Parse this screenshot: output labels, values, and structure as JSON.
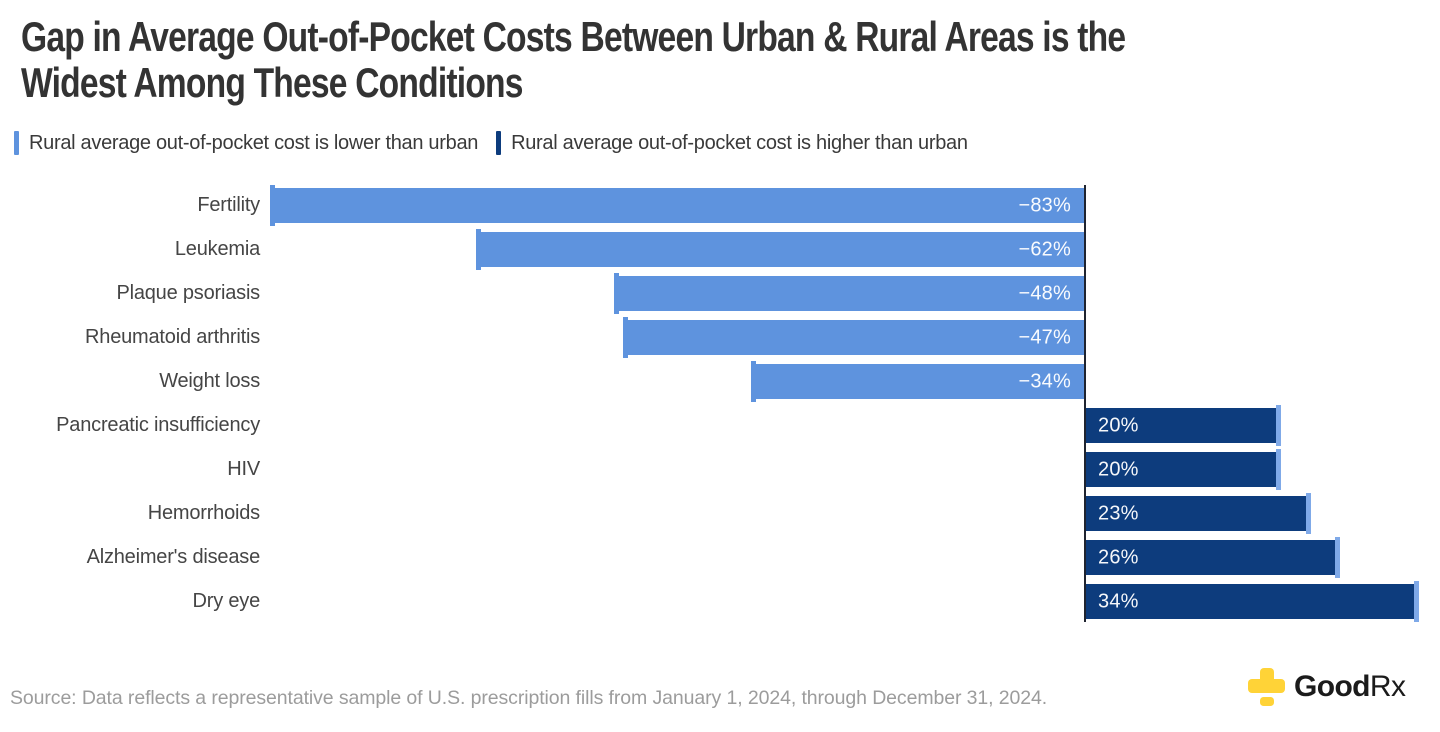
{
  "page": {
    "title_line1": "Gap in Average Out-of-Pocket Costs Between Urban & Rural Areas is the",
    "title_line2": "Widest Among These Conditions"
  },
  "legend": {
    "items": [
      {
        "label": "Rural average out-of-pocket cost is lower than urban",
        "color": "#5E93DE"
      },
      {
        "label": "Rural average out-of-pocket cost is higher than urban",
        "color": "#0D3C7D"
      }
    ]
  },
  "chart_data": {
    "type": "bar",
    "orientation": "horizontal",
    "diverging": true,
    "title": "Gap in Average Out-of-Pocket Costs Between Urban & Rural Areas is the Widest Among These Conditions",
    "categories": [
      "Fertility",
      "Leukemia",
      "Plaque psoriasis",
      "Rheumatoid arthritis",
      "Weight loss",
      "Pancreatic insufficiency",
      "HIV",
      "Hemorrhoids",
      "Alzheimer's disease",
      "Dry eye"
    ],
    "values": [
      -83,
      -62,
      -48,
      -47,
      -34,
      20,
      20,
      23,
      26,
      34
    ],
    "value_labels": [
      "−83%",
      "−62%",
      "−48%",
      "−47%",
      "−34%",
      "20%",
      "20%",
      "23%",
      "26%",
      "34%"
    ],
    "unit": "percent",
    "xlim": [
      -83,
      34
    ],
    "gridlines": false,
    "axis_tick_labels_shown": false,
    "value_label_position": "inside bar, adjacent to zero axis",
    "legend_entries": [
      "Rural average out-of-pocket cost is lower than urban",
      "Rural average out-of-pocket cost is higher than urban"
    ],
    "legend_position": "top-left, above plot",
    "colors": {
      "negative_bar": "#5E93DE",
      "positive_bar": "#0D3C7D",
      "end_cap": "#7FA9E8",
      "axis_line": "#1F2430",
      "value_text": "#FFFFFF"
    }
  },
  "footer": {
    "source": "Source: Data reflects a representative sample of U.S. prescription fills from January 1, 2024, through December 31, 2024.",
    "logo": {
      "brand_bold": "Good",
      "brand_light": "Rx",
      "icon_color": "#FFD337",
      "text_color": "#1B1B1B"
    }
  }
}
